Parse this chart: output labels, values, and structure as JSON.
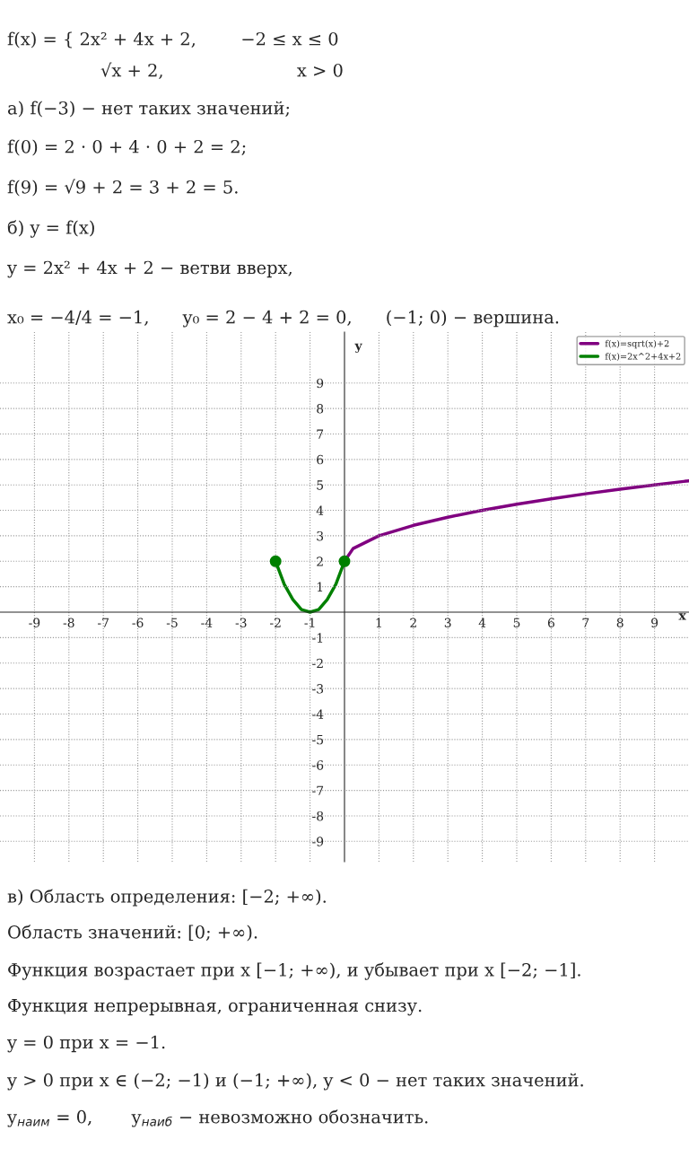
{
  "chart_data": {
    "type": "line",
    "xlabel": "x",
    "ylabel": "y",
    "annotations": [
      "f(x) = { 2x² + 4x + 2,        −2 ≤ x ≤ 0",
      "√x + 2,                        x > 0",
      "а) f(−3) − нет таких значений;",
      "f(0) = 2 · 0 + 4 · 0 + 2 = 2;",
      "f(9) = √9 + 2 = 3 + 2 = 5.",
      "б) y = f(x)",
      "y = 2x² + 4x + 2 − ветви вверх,",
      "x₀ = −4/4 = −1,      y₀ = 2 − 4 + 2 = 0,      (−1; 0) − вершина.",
      "в) Область определения: [−2; +∞).",
      "Область значений: [0; +∞).",
      "Функция возрастает при x [−1; +∞), и убывает при x [−2; −1].",
      "Функция непрерывная, ограниченная снизу.",
      "y = 0 при x = −1.",
      "y > 0 при x ∈ (−2; −1) и (−1; +∞), y < 0 − нет таких значений.",
      "y$_{наим}$ = 0,       y$_{наиб}$ − невозможно обозначить."
    ],
    "series": [
      {
        "name": "f(x)=sqrt(x)+2",
        "color": "#800080",
        "x": [
          0,
          0.25,
          1,
          2,
          3,
          4,
          5,
          6,
          7,
          8,
          9,
          10
        ],
        "values": [
          2,
          2.5,
          3,
          3.41,
          3.73,
          4,
          4.24,
          4.45,
          4.65,
          4.83,
          5,
          5.16
        ]
      },
      {
        "name": "f(x)=2x^2+4x+2",
        "color": "#008000",
        "x": [
          -2,
          -1.75,
          -1.5,
          -1.25,
          -1,
          -0.75,
          -0.5,
          -0.25,
          0
        ],
        "values": [
          2,
          1.1,
          0.5,
          0.1,
          0,
          0.1,
          0.5,
          1.1,
          2
        ]
      },
      {
        "type": "scatter",
        "color": "#008000",
        "marker": "circle",
        "x": [
          -2,
          0
        ],
        "values": [
          2,
          2
        ]
      }
    ],
    "xlim": [
      -10,
      10
    ],
    "ylim": [
      -9.8,
      11
    ],
    "xticks": [
      -9,
      -8,
      -7,
      -6,
      -5,
      -4,
      -3,
      -2,
      -1,
      1,
      2,
      3,
      4,
      5,
      6,
      7,
      8,
      9
    ],
    "yticks": [
      -9,
      -8,
      -7,
      -6,
      -5,
      -4,
      -3,
      -2,
      -1,
      1,
      2,
      3,
      4,
      5,
      6,
      7,
      8,
      9
    ],
    "grid": true,
    "legend": "top right"
  }
}
